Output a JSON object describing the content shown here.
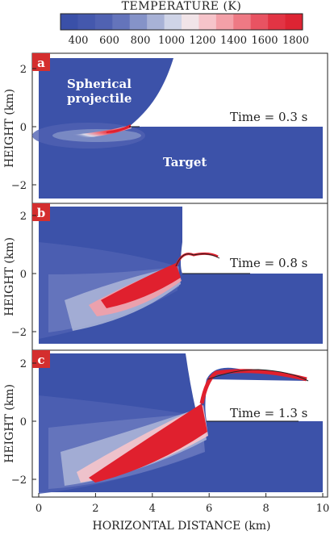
{
  "colorbar": {
    "title": "TEMPERATURE (K)",
    "ticks": [
      "400",
      "600",
      "800",
      "1000",
      "1200",
      "1400",
      "1600",
      "1800"
    ],
    "colors": [
      "#3a50a8",
      "#4458ad",
      "#5062b2",
      "#6474bb",
      "#8593c8",
      "#a8b2d6",
      "#cfd4e7",
      "#f1e4e8",
      "#f6c4ca",
      "#f3a0a8",
      "#ee7984",
      "#e85362",
      "#e23444",
      "#dd2433"
    ]
  },
  "axes": {
    "ylabel": "HEIGHT (km)",
    "xlabel": "HORIZONTAL DISTANCE (km)",
    "yticks": [
      "2",
      "0",
      "−2"
    ],
    "xticks": [
      "0",
      "2",
      "4",
      "6",
      "8",
      "10"
    ]
  },
  "panels": [
    {
      "letter": "a",
      "time": "Time = 0.3 s",
      "projectile_label_1": "Spherical",
      "projectile_label_2": "projectile",
      "target_label": "Target"
    },
    {
      "letter": "b",
      "time": "Time = 0.8 s"
    },
    {
      "letter": "c",
      "time": "Time = 1.3 s"
    }
  ],
  "colors": {
    "target_blue": "#3c52a9",
    "label_red": "#d42e2e",
    "hot_red": "#e0202e"
  }
}
